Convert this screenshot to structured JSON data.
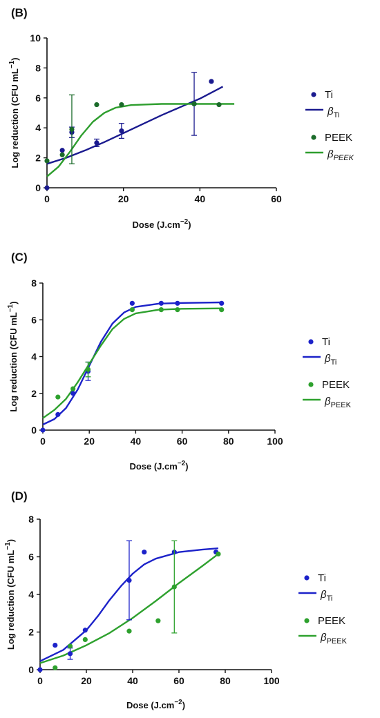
{
  "chart_data": [
    {
      "id": "B",
      "panel_label": "(B)",
      "type": "scatter",
      "xlabel": "Dose (J.cm",
      "xlabel_sup": "−2",
      "xlabel_end": ")",
      "ylabel": "Log reduction (CFU mL",
      "ylabel_sup": "−1",
      "ylabel_end": ")",
      "xlim": [
        0,
        60
      ],
      "ylim": [
        0,
        10
      ],
      "xticks": [
        0,
        20,
        40,
        60
      ],
      "yticks": [
        0,
        2,
        4,
        6,
        8,
        10
      ],
      "grid": false,
      "legend_position": "right",
      "series": [
        {
          "name": "Ti",
          "kind": "points",
          "color": "#1a1a8f",
          "points": [
            {
              "x": 0,
              "y": 0
            },
            {
              "x": 4,
              "y": 2.5
            },
            {
              "x": 6.5,
              "y": 3.7,
              "err": 0.35
            },
            {
              "x": 13,
              "y": 3.0,
              "err": 0.25
            },
            {
              "x": 19.5,
              "y": 3.8,
              "err": 0.5
            },
            {
              "x": 38.5,
              "y": 5.6,
              "err": 2.1
            },
            {
              "x": 43,
              "y": 7.1
            }
          ]
        },
        {
          "name": "β",
          "sub": "Ti",
          "kind": "line",
          "color": "#1a1a8f",
          "points": [
            {
              "x": 0,
              "y": 1.6
            },
            {
              "x": 5,
              "y": 2.0
            },
            {
              "x": 10,
              "y": 2.5
            },
            {
              "x": 15,
              "y": 3.05
            },
            {
              "x": 20,
              "y": 3.65
            },
            {
              "x": 25,
              "y": 4.25
            },
            {
              "x": 30,
              "y": 4.85
            },
            {
              "x": 35,
              "y": 5.4
            },
            {
              "x": 40,
              "y": 5.95
            },
            {
              "x": 46,
              "y": 6.75
            }
          ]
        },
        {
          "name": "PEEK",
          "kind": "points",
          "color": "#1b6b2a",
          "points": [
            {
              "x": 0,
              "y": 1.8
            },
            {
              "x": 4,
              "y": 2.2
            },
            {
              "x": 6.5,
              "y": 3.9,
              "err": 2.3
            },
            {
              "x": 13,
              "y": 5.55
            },
            {
              "x": 19.5,
              "y": 5.55
            },
            {
              "x": 38.5,
              "y": 5.6
            },
            {
              "x": 45,
              "y": 5.55
            }
          ]
        },
        {
          "name": "β",
          "sub": "PEEK",
          "sub_italic": true,
          "kind": "line",
          "color": "#2e9e2e",
          "points": [
            {
              "x": 0,
              "y": 0.75
            },
            {
              "x": 3,
              "y": 1.4
            },
            {
              "x": 6,
              "y": 2.4
            },
            {
              "x": 9,
              "y": 3.5
            },
            {
              "x": 12,
              "y": 4.4
            },
            {
              "x": 15,
              "y": 5.0
            },
            {
              "x": 18,
              "y": 5.35
            },
            {
              "x": 22,
              "y": 5.52
            },
            {
              "x": 30,
              "y": 5.6
            },
            {
              "x": 49,
              "y": 5.6
            }
          ]
        }
      ]
    },
    {
      "id": "C",
      "panel_label": "(C)",
      "type": "scatter",
      "xlabel": "Dose (J.cm",
      "xlabel_sup": "−2",
      "xlabel_end": ")",
      "ylabel": "Log reduction (CFU mL",
      "ylabel_sup": "−1",
      "ylabel_end": ")",
      "xlim": [
        0,
        100
      ],
      "ylim": [
        0,
        8
      ],
      "xticks": [
        0,
        20,
        40,
        60,
        80,
        100
      ],
      "yticks": [
        0,
        2,
        4,
        6,
        8
      ],
      "grid": false,
      "legend_position": "right",
      "series": [
        {
          "name": "Ti",
          "kind": "points",
          "color": "#1c22c9",
          "points": [
            {
              "x": 0,
              "y": 0
            },
            {
              "x": 6.5,
              "y": 0.85
            },
            {
              "x": 13,
              "y": 2.0
            },
            {
              "x": 19.5,
              "y": 3.2,
              "err": 0.5
            },
            {
              "x": 38.5,
              "y": 6.9
            },
            {
              "x": 51,
              "y": 6.9
            },
            {
              "x": 58,
              "y": 6.9
            },
            {
              "x": 77,
              "y": 6.9
            }
          ]
        },
        {
          "name": "β",
          "sub": "Ti",
          "kind": "line",
          "color": "#1c22c9",
          "points": [
            {
              "x": 0,
              "y": 0.3
            },
            {
              "x": 5,
              "y": 0.6
            },
            {
              "x": 10,
              "y": 1.2
            },
            {
              "x": 15,
              "y": 2.2
            },
            {
              "x": 20,
              "y": 3.5
            },
            {
              "x": 25,
              "y": 4.8
            },
            {
              "x": 30,
              "y": 5.8
            },
            {
              "x": 35,
              "y": 6.4
            },
            {
              "x": 40,
              "y": 6.7
            },
            {
              "x": 50,
              "y": 6.88
            },
            {
              "x": 60,
              "y": 6.92
            },
            {
              "x": 77,
              "y": 6.95
            }
          ]
        },
        {
          "name": "PEEK",
          "kind": "points",
          "color": "#2ea12e",
          "points": [
            {
              "x": 6.5,
              "y": 1.8
            },
            {
              "x": 13,
              "y": 2.25
            },
            {
              "x": 19.5,
              "y": 3.3,
              "err": 0.4
            },
            {
              "x": 38.5,
              "y": 6.55
            },
            {
              "x": 51,
              "y": 6.55
            },
            {
              "x": 58,
              "y": 6.55
            },
            {
              "x": 77,
              "y": 6.55
            }
          ]
        },
        {
          "name": "β",
          "sub": "PEEK",
          "kind": "line",
          "color": "#2ea12e",
          "points": [
            {
              "x": 0,
              "y": 0.65
            },
            {
              "x": 5,
              "y": 1.1
            },
            {
              "x": 10,
              "y": 1.7
            },
            {
              "x": 15,
              "y": 2.6
            },
            {
              "x": 20,
              "y": 3.6
            },
            {
              "x": 25,
              "y": 4.6
            },
            {
              "x": 30,
              "y": 5.5
            },
            {
              "x": 35,
              "y": 6.05
            },
            {
              "x": 40,
              "y": 6.35
            },
            {
              "x": 50,
              "y": 6.55
            },
            {
              "x": 60,
              "y": 6.6
            },
            {
              "x": 77,
              "y": 6.62
            }
          ]
        }
      ]
    },
    {
      "id": "D",
      "panel_label": "(D)",
      "type": "scatter",
      "xlabel": "Dose (J.cm",
      "xlabel_sup": "−2",
      "xlabel_end": ")",
      "ylabel": "Log reduction (CFU mL",
      "ylabel_sup": "−1",
      "ylabel_end": ")",
      "xlim": [
        0,
        100
      ],
      "ylim": [
        0,
        8
      ],
      "xticks": [
        0,
        20,
        40,
        60,
        80,
        100
      ],
      "yticks": [
        0,
        2,
        4,
        6,
        8
      ],
      "grid": false,
      "legend_position": "right",
      "series": [
        {
          "name": "Ti",
          "kind": "points",
          "color": "#1c22c9",
          "points": [
            {
              "x": 0,
              "y": 0
            },
            {
              "x": 6.5,
              "y": 1.3
            },
            {
              "x": 13,
              "y": 0.85,
              "err": 0.3
            },
            {
              "x": 19.5,
              "y": 2.1
            },
            {
              "x": 38.5,
              "y": 4.75,
              "err": 2.1
            },
            {
              "x": 45,
              "y": 6.25
            },
            {
              "x": 58,
              "y": 6.25
            },
            {
              "x": 76,
              "y": 6.25
            }
          ]
        },
        {
          "name": "β",
          "sub": "Ti",
          "kind": "line",
          "color": "#1c22c9",
          "points": [
            {
              "x": 0,
              "y": 0.45
            },
            {
              "x": 10,
              "y": 1.05
            },
            {
              "x": 20,
              "y": 2.1
            },
            {
              "x": 25,
              "y": 2.85
            },
            {
              "x": 30,
              "y": 3.7
            },
            {
              "x": 35,
              "y": 4.45
            },
            {
              "x": 40,
              "y": 5.1
            },
            {
              "x": 45,
              "y": 5.6
            },
            {
              "x": 50,
              "y": 5.9
            },
            {
              "x": 60,
              "y": 6.25
            },
            {
              "x": 70,
              "y": 6.38
            },
            {
              "x": 77,
              "y": 6.45
            }
          ]
        },
        {
          "name": "PEEK",
          "kind": "points",
          "color": "#2ea12e",
          "points": [
            {
              "x": 6.5,
              "y": 0.1
            },
            {
              "x": 13,
              "y": 1.25
            },
            {
              "x": 19.5,
              "y": 1.6
            },
            {
              "x": 38.5,
              "y": 2.05
            },
            {
              "x": 51,
              "y": 2.6
            },
            {
              "x": 58,
              "y": 4.4,
              "err": 2.45
            },
            {
              "x": 77,
              "y": 6.15
            }
          ]
        },
        {
          "name": "β",
          "sub": "PEEK",
          "kind": "line",
          "color": "#2ea12e",
          "points": [
            {
              "x": 0,
              "y": 0.35
            },
            {
              "x": 10,
              "y": 0.75
            },
            {
              "x": 20,
              "y": 1.3
            },
            {
              "x": 30,
              "y": 1.95
            },
            {
              "x": 40,
              "y": 2.75
            },
            {
              "x": 50,
              "y": 3.65
            },
            {
              "x": 60,
              "y": 4.6
            },
            {
              "x": 70,
              "y": 5.5
            },
            {
              "x": 77,
              "y": 6.15
            }
          ]
        }
      ]
    }
  ]
}
